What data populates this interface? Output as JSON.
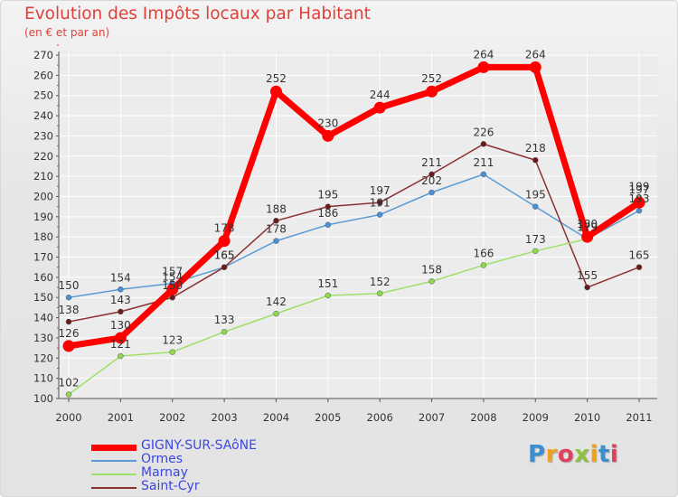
{
  "title": "Evolution des Impôts locaux par Habitant",
  "subtitle": "(en € et par an)",
  "logo": {
    "letters": [
      "P",
      "r",
      "o",
      "x",
      "i",
      "t",
      "i"
    ],
    "colors": [
      "#3a8fd0",
      "#f0a020",
      "#e04060",
      "#8fc040",
      "#f0a020",
      "#3a8fd0",
      "#e04060"
    ]
  },
  "chart_data": {
    "type": "line",
    "title": "Evolution des Impôts locaux par Habitant",
    "subtitle": "(en € et par an)",
    "categories": [
      "2000",
      "2001",
      "2002",
      "2003",
      "2004",
      "2005",
      "2006",
      "2007",
      "2008",
      "2009",
      "2010",
      "2011"
    ],
    "ylim": [
      100,
      270
    ],
    "yticks": [
      100,
      110,
      120,
      130,
      140,
      150,
      160,
      170,
      180,
      190,
      200,
      210,
      220,
      230,
      240,
      250,
      260,
      270
    ],
    "grid": true,
    "legend_position": "bottom-left",
    "series": [
      {
        "name": "GIGNY-SUR-SAôNE",
        "values": [
          126,
          130,
          154,
          178,
          252,
          230,
          244,
          252,
          264,
          264,
          180,
          197
        ],
        "color": "#ff0000",
        "width": 7,
        "marker": 6.5,
        "markerColor": "#ff0000",
        "labels": [
          "126",
          "130",
          "154",
          "178",
          "252",
          "230",
          "244",
          "252",
          "264",
          "264",
          "180",
          "197"
        ]
      },
      {
        "name": "Ormes",
        "values": [
          150,
          154,
          157,
          165,
          178,
          186,
          191,
          202,
          211,
          195,
          179,
          193
        ],
        "color": "#5b9bd5",
        "width": 1.5,
        "marker": 3,
        "markerColor": "#4a90d9",
        "labels": [
          "150",
          "154",
          "157",
          "165",
          "178",
          "186",
          "191",
          "202",
          "211",
          "195",
          "179",
          "193"
        ]
      },
      {
        "name": "Marnay",
        "values": [
          102,
          121,
          123,
          133,
          142,
          151,
          152,
          158,
          166,
          173,
          179,
          199
        ],
        "color": "#9ee06a",
        "width": 1.5,
        "marker": 3,
        "markerColor": "#8fd94f",
        "labels": [
          "102",
          "121",
          "123",
          "133",
          "142",
          "151",
          "152",
          "158",
          "166",
          "173",
          "179",
          "199"
        ]
      },
      {
        "name": "Saint-Cyr",
        "values": [
          138,
          143,
          150,
          165,
          188,
          195,
          197,
          211,
          226,
          218,
          155,
          165
        ],
        "color": "#8a3030",
        "width": 1.5,
        "marker": 3,
        "markerColor": "#6a1a1a",
        "labels": [
          "138",
          "143",
          "150",
          "165",
          "188",
          "195",
          "197",
          "211",
          "226",
          "218",
          "155",
          "165"
        ]
      }
    ]
  },
  "legend": [
    {
      "label": "GIGNY-SUR-SAôNE",
      "color": "#ff0000",
      "thickness": 7
    },
    {
      "label": "Ormes",
      "color": "#5b9bd5",
      "thickness": 2
    },
    {
      "label": "Marnay",
      "color": "#9ee06a",
      "thickness": 2
    },
    {
      "label": "Saint-Cyr",
      "color": "#8a3030",
      "thickness": 2
    }
  ]
}
